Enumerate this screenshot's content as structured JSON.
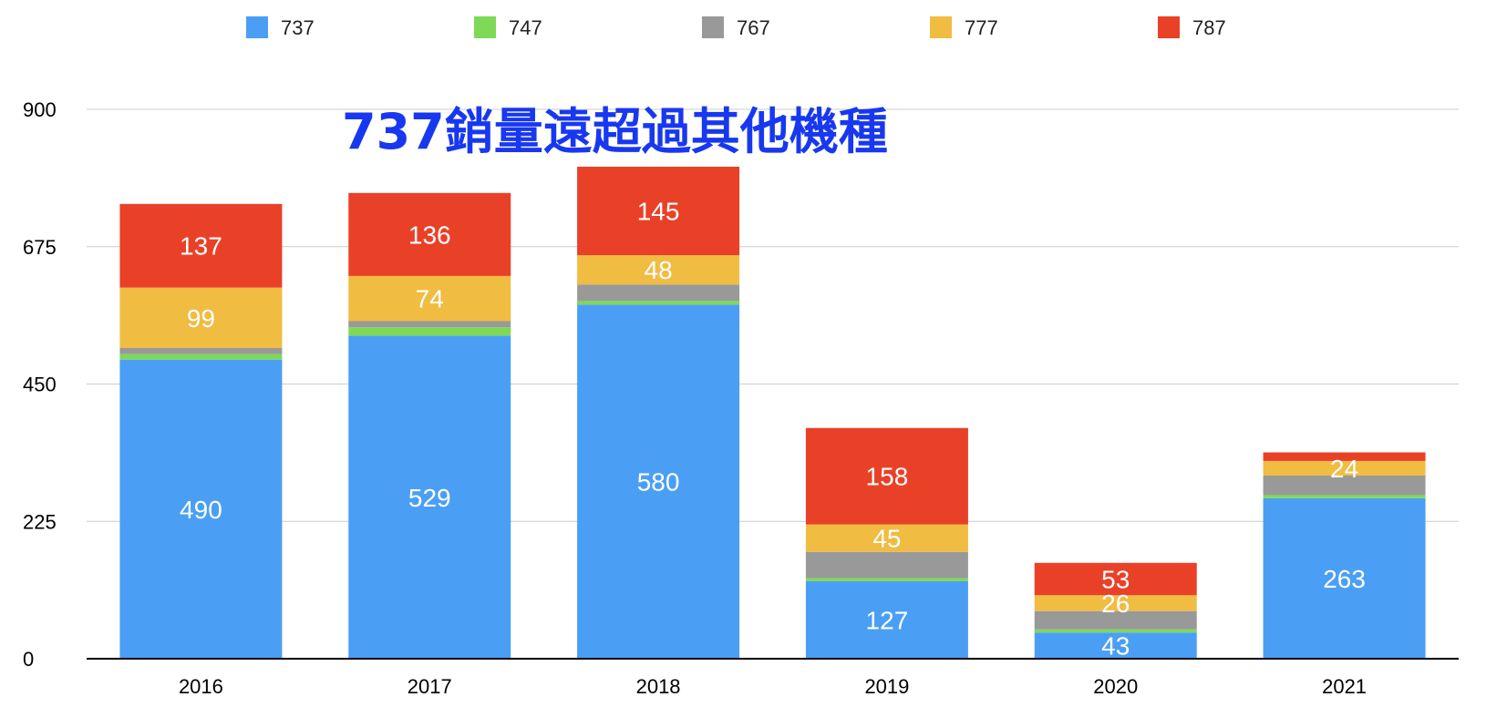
{
  "chart_data": {
    "type": "bar",
    "stacked": true,
    "categories": [
      "2016",
      "2017",
      "2018",
      "2019",
      "2020",
      "2021"
    ],
    "series": [
      {
        "name": "737",
        "color": "#4a9ff5",
        "values": [
          490,
          529,
          580,
          127,
          43,
          263
        ]
      },
      {
        "name": "747",
        "color": "#7ed957",
        "values": [
          9,
          14,
          6,
          5,
          5,
          5
        ]
      },
      {
        "name": "767",
        "color": "#999999",
        "values": [
          10,
          10,
          27,
          43,
          30,
          32
        ]
      },
      {
        "name": "777",
        "color": "#f0bc42",
        "values": [
          99,
          74,
          48,
          45,
          26,
          24
        ]
      },
      {
        "name": "787",
        "color": "#e94127",
        "values": [
          137,
          136,
          145,
          158,
          53,
          14
        ]
      }
    ],
    "data_labels": {
      "737": [
        "490",
        "529",
        "580",
        "127",
        "43",
        "263"
      ],
      "777": [
        "99",
        "74",
        "48",
        "45",
        "26",
        "24"
      ],
      "787": [
        "137",
        "136",
        "145",
        "158",
        "53",
        ""
      ]
    },
    "y_ticks": [
      "0",
      "225",
      "450",
      "675",
      "900"
    ],
    "ylim": [
      0,
      900
    ],
    "grid": true,
    "legend_position": "top",
    "annotation": "737銷量遠超過其他機種"
  }
}
